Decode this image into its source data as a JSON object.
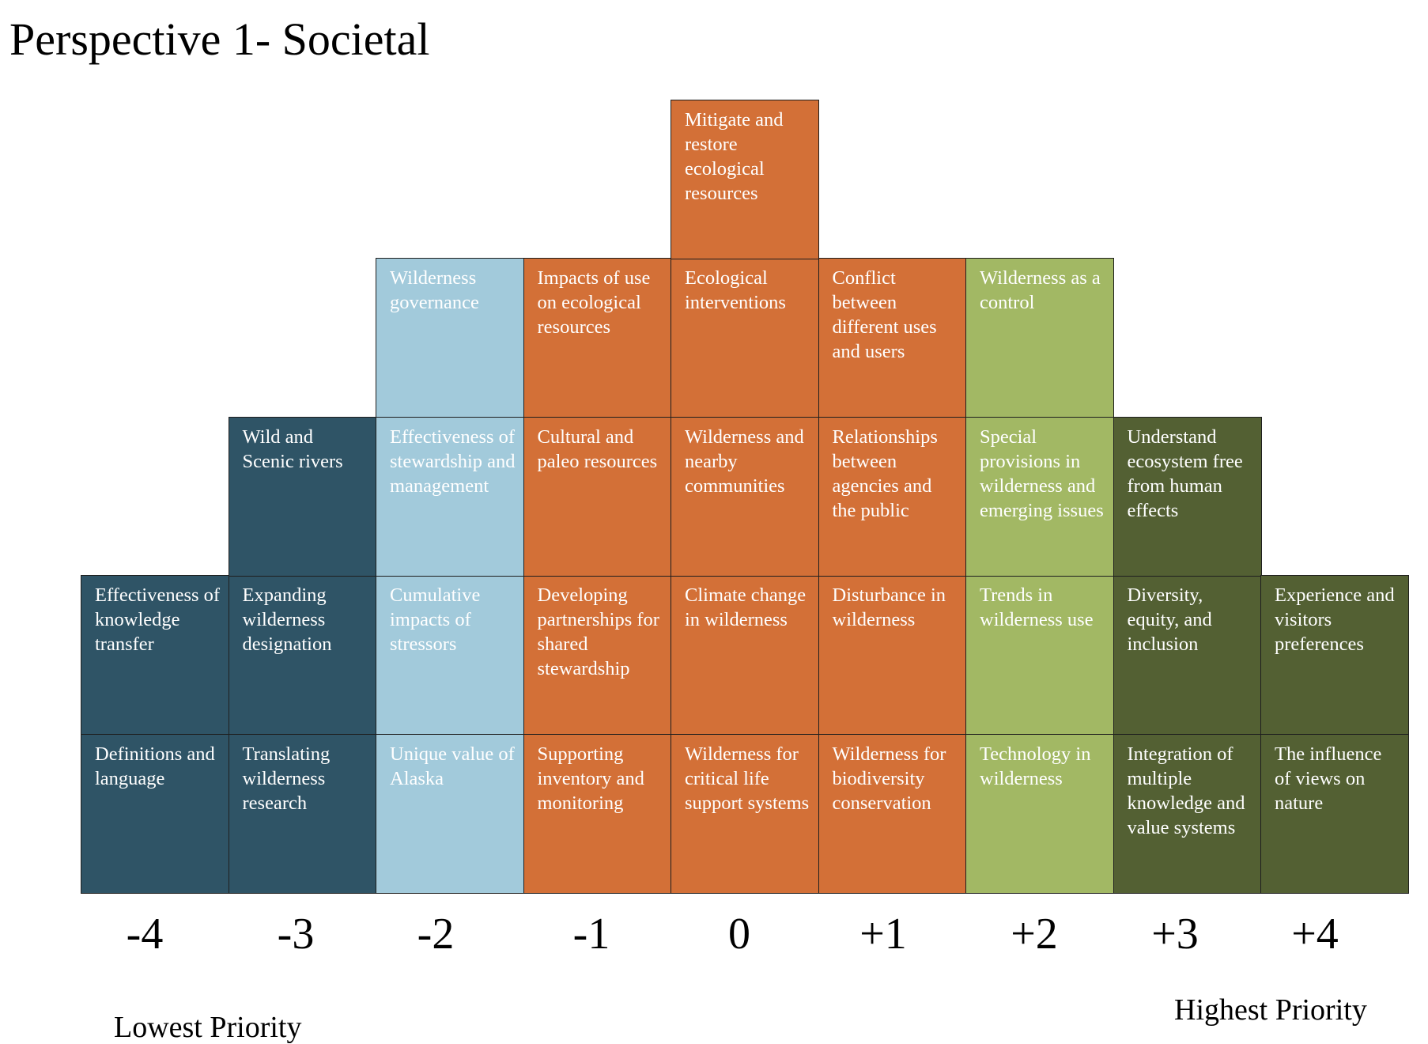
{
  "title": "Perspective 1- Societal",
  "colors": {
    "dark_teal": "#2f5466",
    "light_blue": "#a2cadb",
    "orange": "#d37037",
    "lime_green": "#a2b864",
    "olive_green": "#536033"
  },
  "columns": [
    {
      "score": "-4",
      "color": "dark_teal",
      "items": [
        "Definitions and language",
        "Effectiveness of knowledge transfer"
      ]
    },
    {
      "score": "-3",
      "color": "dark_teal",
      "items": [
        "Translating wilderness research",
        "Expanding wilderness designation",
        "Wild and Scenic rivers"
      ]
    },
    {
      "score": "-2",
      "color": "light_blue",
      "items": [
        "Unique value of Alaska",
        "Cumulative impacts of stressors",
        "Effectiveness of stewardship and management",
        "Wilderness governance"
      ]
    },
    {
      "score": "-1",
      "color": "orange",
      "items": [
        "Supporting inventory and monitoring",
        "Developing partnerships for shared stewardship",
        "Cultural and paleo resources",
        "Impacts of use on ecological resources"
      ]
    },
    {
      "score": "0",
      "color": "orange",
      "items": [
        "Wilderness for critical life support systems",
        "Climate change in wilderness",
        "Wilderness and nearby communities",
        "Ecological interventions",
        "Mitigate and restore ecological resources"
      ]
    },
    {
      "score": "+1",
      "color": "orange",
      "items": [
        "Wilderness for biodiversity conservation",
        "Disturbance in wilderness",
        "Relationships between agencies and the public",
        "Conflict between different uses and users"
      ]
    },
    {
      "score": "+2",
      "color": "lime_green",
      "items": [
        "Technology in wilderness",
        "Trends in wilderness use",
        "Special provisions in wilderness and emerging issues",
        "Wilderness as a control"
      ]
    },
    {
      "score": "+3",
      "color": "olive_green",
      "items": [
        "Integration of multiple knowledge and value systems",
        "Diversity, equity, and inclusion",
        "Understand ecosystem free from human effects"
      ]
    },
    {
      "score": "+4",
      "color": "olive_green",
      "items": [
        "The influence of views on nature",
        "Experience and visitors preferences"
      ]
    }
  ],
  "lowest_label": "Lowest Priority",
  "highest_label": "Highest Priority"
}
